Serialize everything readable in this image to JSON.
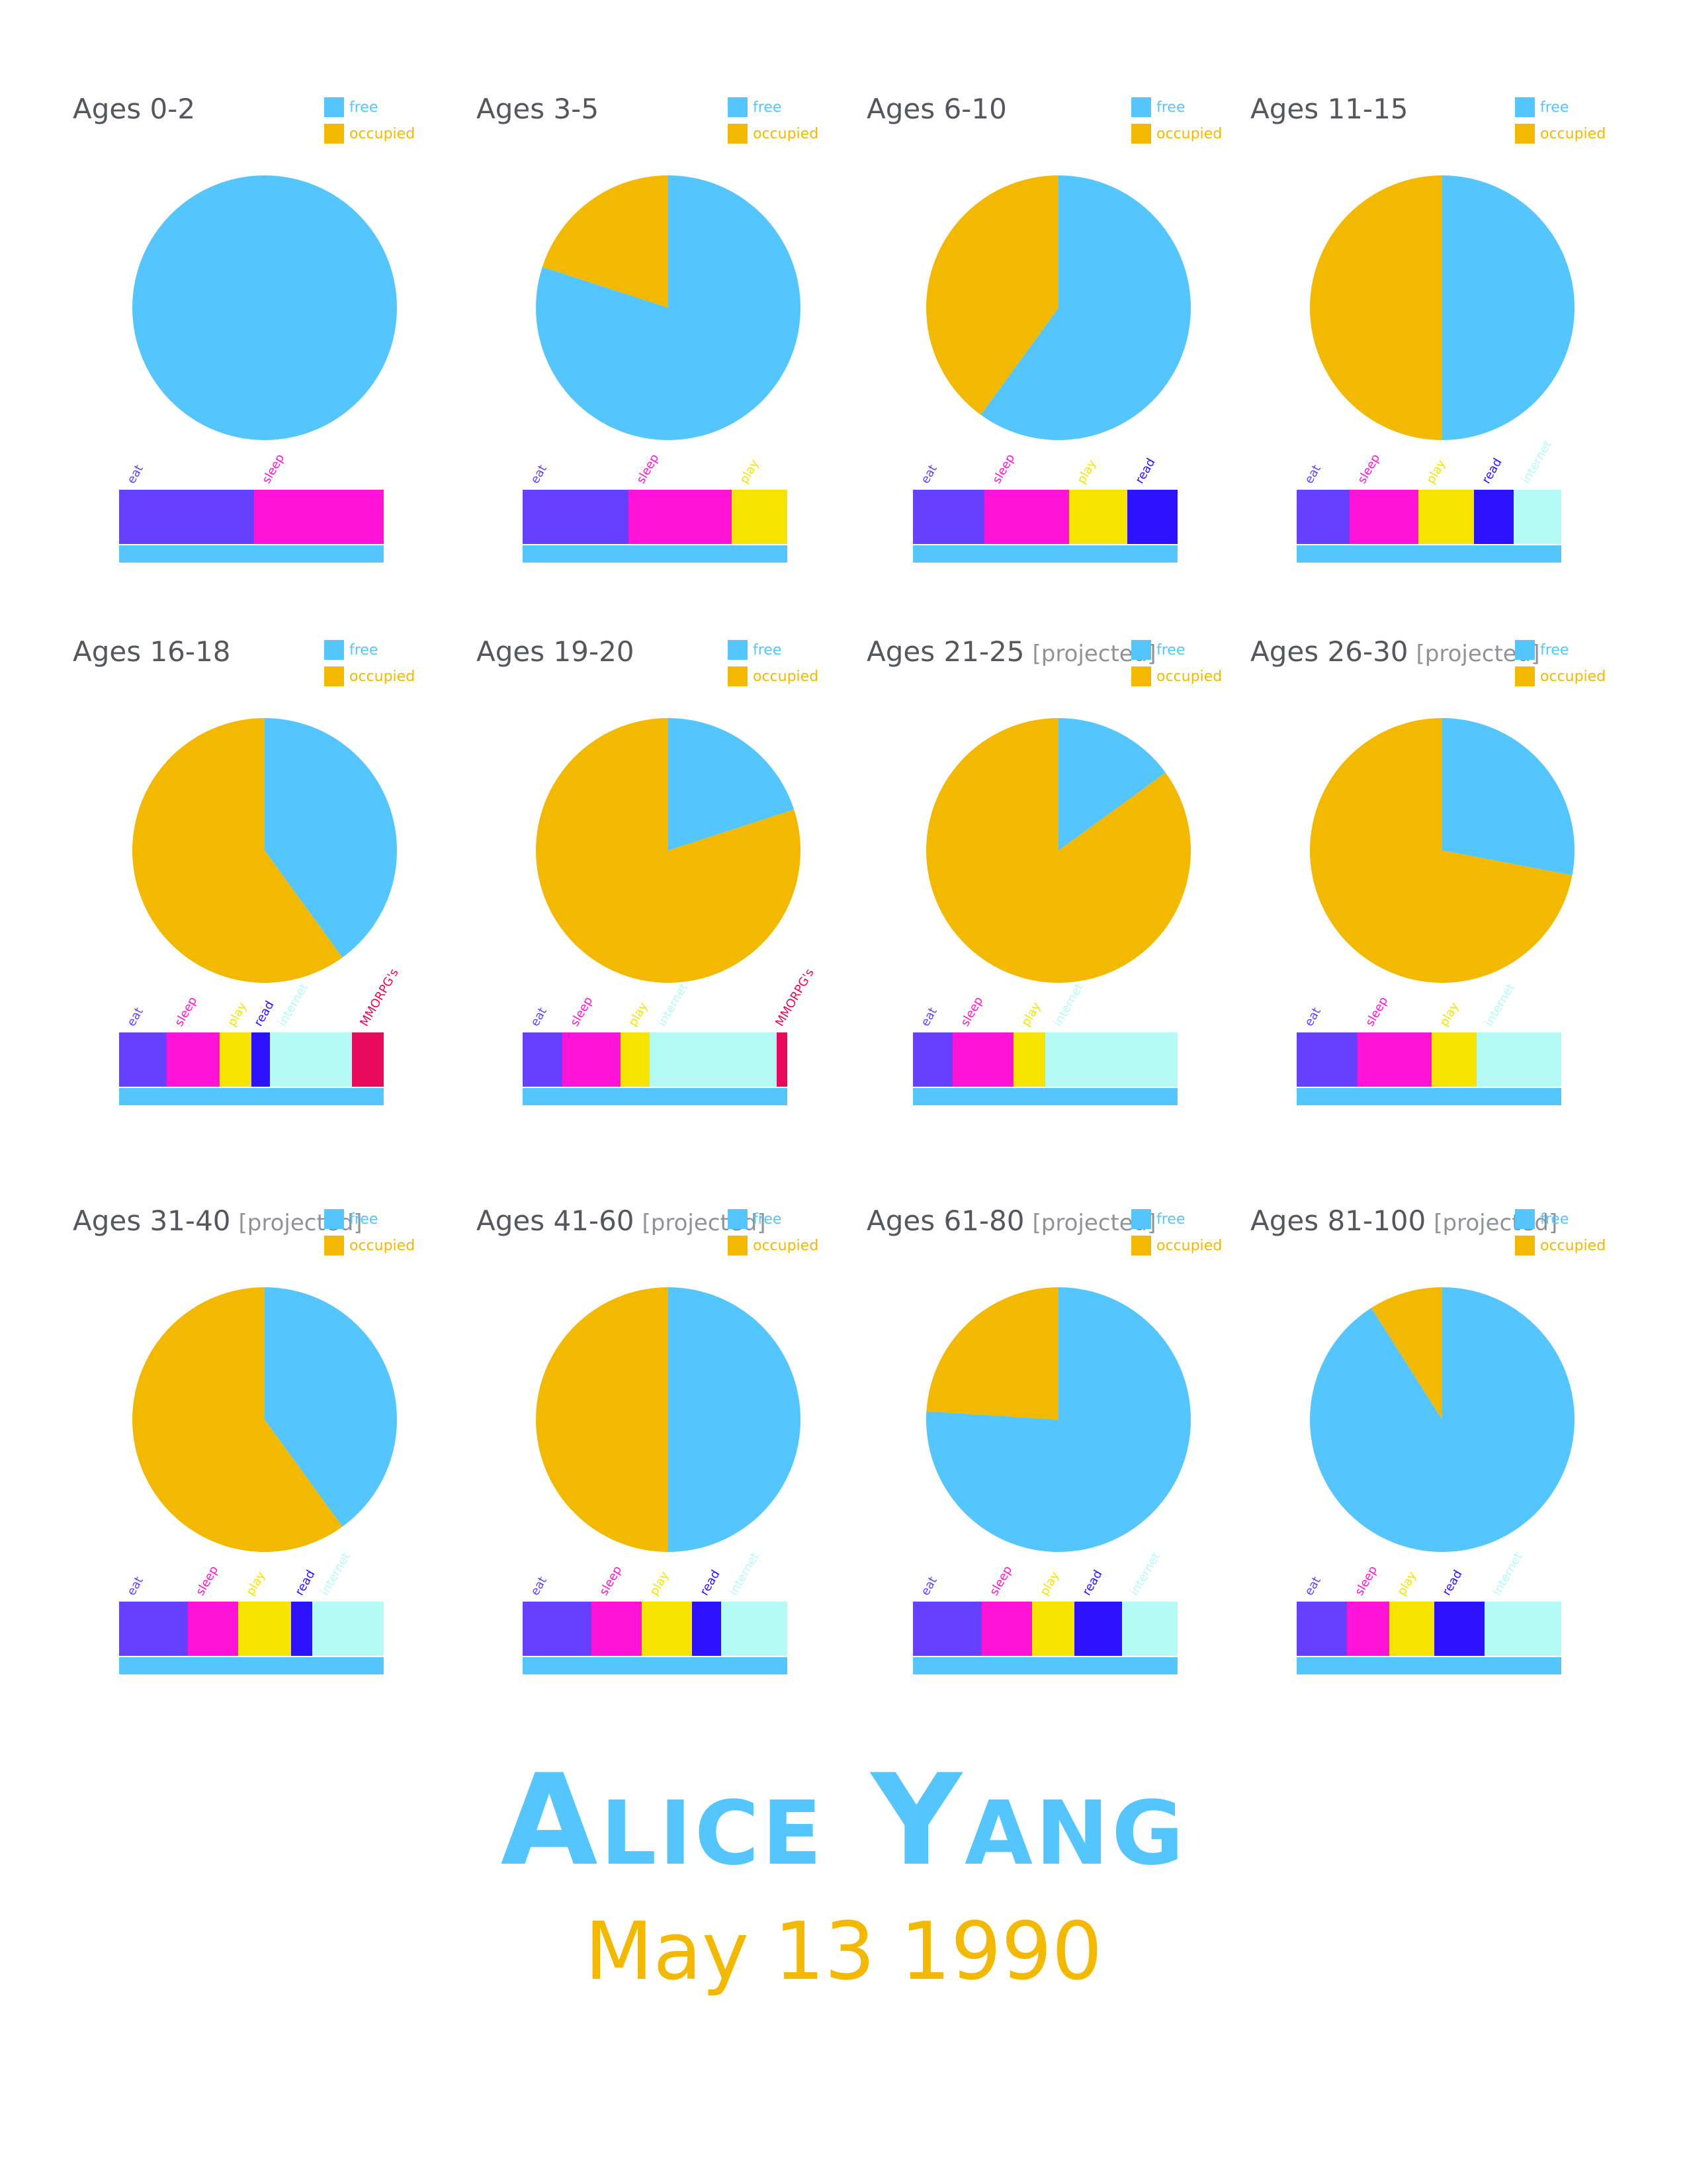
{
  "colors": {
    "free": "#54c5fd",
    "occupied": "#f2b900",
    "eat": "#6640ff",
    "sleep": "#ff14d7",
    "play": "#f7e300",
    "read": "#2d12ff",
    "internet": "#b4fbf5",
    "mmorpgs": "#e8095b",
    "baseline": "#54c5fd",
    "title": "#54585e",
    "projected": "#8f9398"
  },
  "legend": {
    "free": "free",
    "occupied": "occupied"
  },
  "chart_data": [
    {
      "type": "pie",
      "title": "Ages 0-2",
      "qualifier": "",
      "labels": [
        "free",
        "occupied"
      ],
      "values": [
        100,
        0
      ],
      "activities": [
        {
          "name": "eat",
          "value": 51
        },
        {
          "name": "sleep",
          "value": 49
        }
      ]
    },
    {
      "type": "pie",
      "title": "Ages 3-5",
      "qualifier": "",
      "labels": [
        "free",
        "occupied"
      ],
      "values": [
        80,
        20
      ],
      "activities": [
        {
          "name": "eat",
          "value": 40
        },
        {
          "name": "sleep",
          "value": 39
        },
        {
          "name": "play",
          "value": 21
        }
      ]
    },
    {
      "type": "pie",
      "title": "Ages 6-10",
      "qualifier": "",
      "labels": [
        "free",
        "occupied"
      ],
      "values": [
        60,
        40
      ],
      "activities": [
        {
          "name": "eat",
          "value": 27
        },
        {
          "name": "sleep",
          "value": 32
        },
        {
          "name": "play",
          "value": 22
        },
        {
          "name": "read",
          "value": 19
        }
      ]
    },
    {
      "type": "pie",
      "title": "Ages 11-15",
      "qualifier": "",
      "labels": [
        "free",
        "occupied"
      ],
      "values": [
        50,
        50
      ],
      "activities": [
        {
          "name": "eat",
          "value": 20
        },
        {
          "name": "sleep",
          "value": 26
        },
        {
          "name": "play",
          "value": 21
        },
        {
          "name": "read",
          "value": 15
        },
        {
          "name": "internet",
          "value": 18
        }
      ]
    },
    {
      "type": "pie",
      "title": "Ages 16-18",
      "qualifier": "",
      "labels": [
        "free",
        "occupied"
      ],
      "values": [
        40,
        60
      ],
      "activities": [
        {
          "name": "eat",
          "value": 18
        },
        {
          "name": "sleep",
          "value": 20
        },
        {
          "name": "play",
          "value": 12
        },
        {
          "name": "read",
          "value": 7
        },
        {
          "name": "internet",
          "value": 31
        },
        {
          "name": "MMORPG's",
          "value": 12
        }
      ]
    },
    {
      "type": "pie",
      "title": "Ages 19-20",
      "qualifier": "",
      "labels": [
        "free",
        "occupied"
      ],
      "values": [
        20,
        80
      ],
      "activities": [
        {
          "name": "eat",
          "value": 15
        },
        {
          "name": "sleep",
          "value": 22
        },
        {
          "name": "play",
          "value": 11
        },
        {
          "name": "internet",
          "value": 48
        },
        {
          "name": "MMORPG's",
          "value": 4
        }
      ]
    },
    {
      "type": "pie",
      "title": "Ages 21-25",
      "qualifier": "[projected]",
      "labels": [
        "free",
        "occupied"
      ],
      "values": [
        15,
        85
      ],
      "activities": [
        {
          "name": "eat",
          "value": 15
        },
        {
          "name": "sleep",
          "value": 23
        },
        {
          "name": "play",
          "value": 12
        },
        {
          "name": "internet",
          "value": 50
        }
      ]
    },
    {
      "type": "pie",
      "title": "Ages 26-30",
      "qualifier": "[projected]",
      "labels": [
        "free",
        "occupied"
      ],
      "values": [
        28,
        72
      ],
      "activities": [
        {
          "name": "eat",
          "value": 23
        },
        {
          "name": "sleep",
          "value": 28
        },
        {
          "name": "play",
          "value": 17
        },
        {
          "name": "internet",
          "value": 32
        }
      ]
    },
    {
      "type": "pie",
      "title": "Ages 31-40",
      "qualifier": "[projected]",
      "labels": [
        "free",
        "occupied"
      ],
      "values": [
        40,
        60
      ],
      "activities": [
        {
          "name": "eat",
          "value": 26
        },
        {
          "name": "sleep",
          "value": 19
        },
        {
          "name": "play",
          "value": 20
        },
        {
          "name": "read",
          "value": 8
        },
        {
          "name": "internet",
          "value": 27
        }
      ]
    },
    {
      "type": "pie",
      "title": "Ages 41-60",
      "qualifier": "[projected]",
      "labels": [
        "free",
        "occupied"
      ],
      "values": [
        50,
        50
      ],
      "activities": [
        {
          "name": "eat",
          "value": 26
        },
        {
          "name": "sleep",
          "value": 19
        },
        {
          "name": "play",
          "value": 19
        },
        {
          "name": "read",
          "value": 11
        },
        {
          "name": "internet",
          "value": 25
        }
      ]
    },
    {
      "type": "pie",
      "title": "Ages 61-80",
      "qualifier": "[projected]",
      "labels": [
        "free",
        "occupied"
      ],
      "values": [
        76,
        24
      ],
      "activities": [
        {
          "name": "eat",
          "value": 26
        },
        {
          "name": "sleep",
          "value": 19
        },
        {
          "name": "play",
          "value": 16
        },
        {
          "name": "read",
          "value": 18
        },
        {
          "name": "internet",
          "value": 21
        }
      ]
    },
    {
      "type": "pie",
      "title": "Ages 81-100",
      "qualifier": "[projected]",
      "labels": [
        "free",
        "occupied"
      ],
      "values": [
        91,
        9
      ],
      "activities": [
        {
          "name": "eat",
          "value": 19
        },
        {
          "name": "sleep",
          "value": 16
        },
        {
          "name": "play",
          "value": 17
        },
        {
          "name": "read",
          "value": 19
        },
        {
          "name": "internet",
          "value": 29
        }
      ]
    }
  ],
  "footer": {
    "name": "Alice Yang",
    "date": "May 13 1990"
  }
}
